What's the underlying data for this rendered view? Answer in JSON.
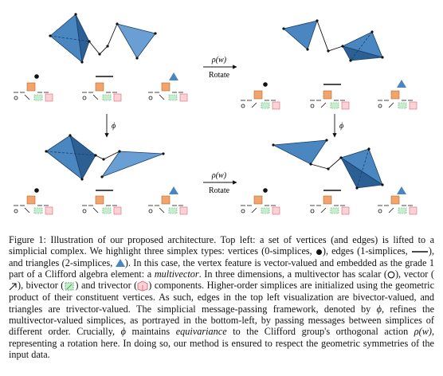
{
  "figure": {
    "operations": {
      "rho": "ρ(w)",
      "rotate": "Rotate",
      "phi": "ϕ"
    }
  },
  "caption": {
    "figure_label": "Figure 1:",
    "s1": "Illustration of our proposed architecture. Top left: a set of vertices (and edges) is lifted to a simplicial complex. We highlight three simplex types: vertices (0-simplices,",
    "s2": "), edges (1-simplices,",
    "s3": "), and triangles (2-simplices,",
    "s4": "). In this case, the vertex feature is vector-valued and embedded as the grade 1 part of a Clifford algebra element: a",
    "s5": "multivector",
    "s6": ". In three dimensions, a multivector has scalar (",
    "s7": "), vector (",
    "s8": "), bivector (",
    "s9": ") and trivector (",
    "s10": ") components. Higher-order simplices are initialized using the geometric product of their constituent vertices. As such, edges in the top left visualization are bivector-valued, and triangles are trivector-valued. The simplicial message-passing framework, denoted by",
    "s11": ", refines the multivector-valued simplices, as portrayed in the bottom-left, by passing messages between simplices of different order. Crucially,",
    "s12": "maintains",
    "s13": "equivariance",
    "s14": "to the Clifford group's orthogonal action",
    "s15": ", representing a rotation here. In doing so, our method is ensured to respect the geometric symmetries of the input data."
  },
  "colors": {
    "triangle_fill": "#4a86c0",
    "triangle_dark": "#2c5f94",
    "triangle_light": "#7fafd9",
    "scalar_orange": "#f2a46c",
    "bivector_green": "#58b96a",
    "trivector_red": "#e06070"
  }
}
